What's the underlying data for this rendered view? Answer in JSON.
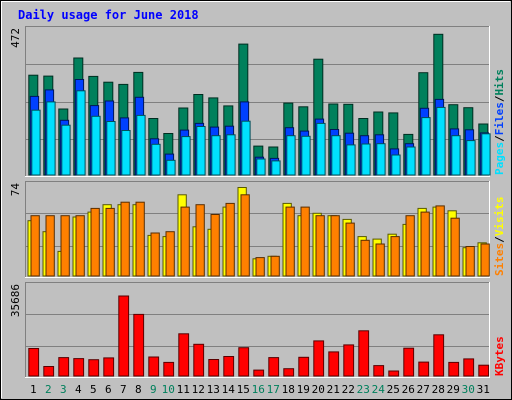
{
  "title": "Daily usage for June 2018",
  "colors": {
    "hits": "#00805c",
    "files": "#0040ff",
    "pages": "#00e0ff",
    "visits": "#ffff00",
    "sites": "#ff8000",
    "kbytes": "#ff0000",
    "weekday": "#000000",
    "weekend": "#00805c",
    "title": "#0000ff",
    "separator": "#000000"
  },
  "chart_data": [
    {
      "type": "bar",
      "panel": "hits-files-pages",
      "ymax_label": "472",
      "ylim": [
        0,
        472
      ],
      "side_labels": [
        "Pages",
        "Files",
        "Hits"
      ],
      "categories": [
        "1",
        "2",
        "3",
        "4",
        "5",
        "6",
        "7",
        "8",
        "9",
        "10",
        "11",
        "12",
        "13",
        "14",
        "15",
        "16",
        "17",
        "18",
        "19",
        "20",
        "21",
        "22",
        "23",
        "24",
        "25",
        "26",
        "27",
        "28",
        "29",
        "30",
        "31"
      ],
      "series": [
        {
          "name": "Hits",
          "values": [
            325,
            322,
            215,
            381,
            321,
            302,
            295,
            334,
            184,
            135,
            218,
            262,
            251,
            225,
            426,
            94,
            91,
            234,
            222,
            377,
            231,
            230,
            184,
            205,
            202,
            132,
            333,
            458,
            229,
            219,
            166
          ]
        },
        {
          "name": "Files",
          "values": [
            256,
            277,
            178,
            311,
            226,
            241,
            186,
            253,
            118,
            68,
            146,
            168,
            156,
            159,
            238,
            58,
            54,
            154,
            143,
            182,
            148,
            136,
            128,
            131,
            85,
            102,
            217,
            246,
            150,
            147,
            137
          ]
        },
        {
          "name": "Pages",
          "values": [
            211,
            238,
            162,
            274,
            191,
            174,
            145,
            194,
            100,
            48,
            125,
            158,
            128,
            131,
            175,
            52,
            46,
            128,
            126,
            168,
            128,
            98,
            101,
            102,
            65,
            91,
            187,
            220,
            128,
            112,
            134
          ]
        }
      ]
    },
    {
      "type": "bar",
      "panel": "visits-sites",
      "ymax_label": "74",
      "ylim": [
        0,
        74
      ],
      "side_labels": [
        "Sites",
        "Visits"
      ],
      "categories": [
        "1",
        "2",
        "3",
        "4",
        "5",
        "6",
        "7",
        "8",
        "9",
        "10",
        "11",
        "12",
        "13",
        "14",
        "15",
        "16",
        "17",
        "18",
        "19",
        "20",
        "21",
        "22",
        "23",
        "24",
        "25",
        "26",
        "27",
        "28",
        "29",
        "30",
        "31"
      ],
      "series": [
        {
          "name": "Visits",
          "values": [
            45,
            36,
            20,
            48,
            52,
            58,
            58,
            58,
            33,
            32,
            66,
            40,
            38,
            56,
            72,
            14,
            16,
            59,
            49,
            51,
            49,
            46,
            32,
            30,
            34,
            42,
            55,
            56,
            53,
            23,
            27
          ]
        },
        {
          "name": "Sites",
          "values": [
            49,
            49,
            49,
            49,
            55,
            55,
            60,
            60,
            35,
            36,
            56,
            58,
            50,
            59,
            66,
            15,
            16,
            56,
            56,
            49,
            49,
            43,
            29,
            26,
            32,
            49,
            52,
            57,
            47,
            24,
            26
          ]
        }
      ]
    },
    {
      "type": "bar",
      "panel": "kbytes",
      "ymax_label": "35686",
      "ylim": [
        0,
        35686
      ],
      "side_labels": [
        "KBytes"
      ],
      "categories": [
        "1",
        "2",
        "3",
        "4",
        "5",
        "6",
        "7",
        "8",
        "9",
        "10",
        "11",
        "12",
        "13",
        "14",
        "15",
        "16",
        "17",
        "18",
        "19",
        "20",
        "21",
        "22",
        "23",
        "24",
        "25",
        "26",
        "27",
        "28",
        "29",
        "30",
        "31"
      ],
      "series": [
        {
          "name": "KBytes",
          "values": [
            10892,
            3780,
            7308,
            6912,
            6480,
            7168,
            31710,
            24410,
            7540,
            5400,
            16730,
            12580,
            6552,
            7740,
            11212,
            2340,
            7308,
            2898,
            7400,
            13920,
            9540,
            12330,
            17920,
            4128,
            1980,
            11020,
            5500,
            16320,
            5400,
            6800,
            4300
          ]
        }
      ]
    }
  ]
}
